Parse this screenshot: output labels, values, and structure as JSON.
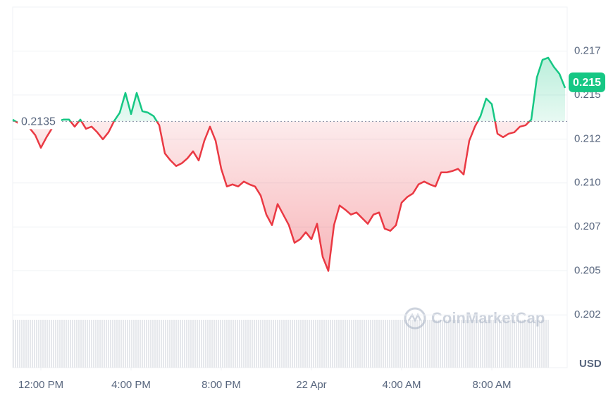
{
  "chart_data": {
    "type": "line",
    "values": [
      0.2136,
      0.2134,
      0.21328,
      0.21312,
      0.21272,
      0.212,
      0.2126,
      0.21312,
      0.21352,
      0.2136,
      0.2136,
      0.2132,
      0.2136,
      0.21308,
      0.2132,
      0.21288,
      0.21248,
      0.21288,
      0.21352,
      0.214,
      0.21512,
      0.21392,
      0.21512,
      0.21408,
      0.214,
      0.2138,
      0.21328,
      0.21168,
      0.21128,
      0.21096,
      0.21112,
      0.2114,
      0.2118,
      0.21128,
      0.2124,
      0.2132,
      0.2124,
      0.2108,
      0.2098,
      0.20992,
      0.2098,
      0.21008,
      0.20992,
      0.2098,
      0.20928,
      0.2082,
      0.2076,
      0.2088,
      0.2082,
      0.2076,
      0.2066,
      0.2068,
      0.2072,
      0.2068,
      0.20768,
      0.2058,
      0.205,
      0.2076,
      0.20872,
      0.20848,
      0.2082,
      0.20832,
      0.208,
      0.20768,
      0.2082,
      0.20832,
      0.2074,
      0.20728,
      0.2076,
      0.20888,
      0.2092,
      0.2094,
      0.20992,
      0.21008,
      0.20992,
      0.2098,
      0.2106,
      0.2106,
      0.21068,
      0.2108,
      0.21048,
      0.2124,
      0.2132,
      0.2138,
      0.2148,
      0.21448,
      0.2128,
      0.2126,
      0.2128,
      0.21288,
      0.2132,
      0.21328,
      0.2136,
      0.216,
      0.217,
      0.21712,
      0.2166,
      0.2162,
      0.2154
    ],
    "value_labels": [
      null,
      null,
      null,
      null,
      null,
      null,
      null,
      null,
      null,
      null,
      null,
      null,
      null,
      null,
      null,
      null,
      null,
      null,
      null,
      null,
      null,
      null,
      null,
      null,
      null,
      null,
      null,
      null,
      null,
      null,
      null,
      null,
      null,
      null,
      null,
      null,
      null,
      null,
      null,
      null,
      null,
      null,
      null,
      null,
      null,
      null,
      null,
      null,
      null,
      null,
      null,
      null,
      null,
      null,
      null,
      null,
      null,
      null,
      null,
      null,
      null,
      null,
      null,
      null,
      null,
      null,
      null,
      null,
      null,
      null,
      null,
      null,
      null,
      null,
      null,
      null,
      null,
      null,
      null,
      null,
      null,
      null,
      null,
      null,
      null,
      null,
      null,
      null,
      null,
      null,
      null,
      null,
      null,
      null,
      null,
      null,
      null,
      null,
      "0.215"
    ],
    "baseline": 0.2135,
    "baseline_label": "0.2135",
    "up_color": "#16c784",
    "down_color": "#ea3943",
    "xlim": [
      0,
      98
    ],
    "xticks": [
      {
        "value": 5,
        "label": "12:00 PM"
      },
      {
        "value": 21,
        "label": "4:00 PM"
      },
      {
        "value": 37,
        "label": "8:00 PM"
      },
      {
        "value": 53,
        "label": "22 Apr"
      },
      {
        "value": 69,
        "label": "4:00 AM"
      },
      {
        "value": 85,
        "label": "8:00 AM"
      }
    ],
    "ylim": [
      0.1995,
      0.22
    ],
    "yticks": [
      {
        "value": 0.2025,
        "label": "0.202"
      },
      0.205,
      {
        "value": 0.2075,
        "label": "0.207"
      },
      {
        "value": 0.21,
        "label": "0.210"
      },
      {
        "value": 0.2125,
        "label": "0.212"
      },
      0.215,
      {
        "value": 0.2175,
        "label": "0.217"
      }
    ],
    "grid": true,
    "currency_label": "USD",
    "watermark": "CoinMarketCap"
  }
}
